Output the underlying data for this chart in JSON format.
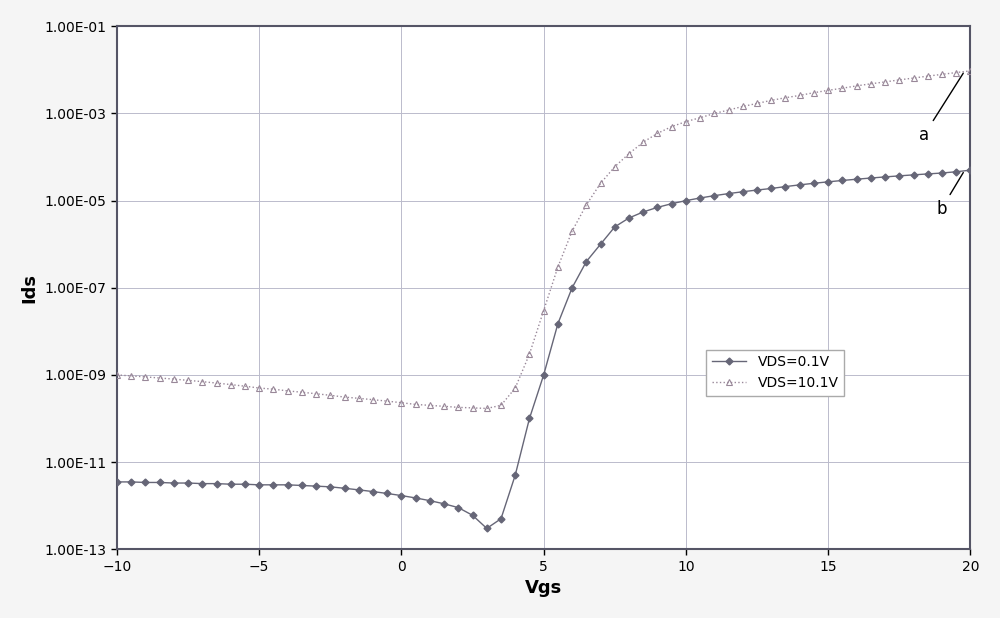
{
  "title": "",
  "xlabel": "Vgs",
  "ylabel": "Ids",
  "xlim": [
    -10,
    20
  ],
  "ylim_log": [
    -13,
    -1
  ],
  "background_color": "#f5f5f5",
  "plot_bg_color": "#ffffff",
  "border_color": "#555566",
  "grid_color": "#bbbbcc",
  "vds01_color": "#666677",
  "vds101_color": "#998899",
  "vds01_label": "VDS=0.1V",
  "vds101_label": "VDS=10.1V",
  "annotation_a": "a",
  "annotation_b": "b",
  "vds01_x": [
    -10.0,
    -9.5,
    -9.0,
    -8.5,
    -8.0,
    -7.5,
    -7.0,
    -6.5,
    -6.0,
    -5.5,
    -5.0,
    -4.5,
    -4.0,
    -3.5,
    -3.0,
    -2.5,
    -2.0,
    -1.5,
    -1.0,
    -0.5,
    0.0,
    0.5,
    1.0,
    1.5,
    2.0,
    2.5,
    3.0,
    3.5,
    4.0,
    4.5,
    5.0,
    5.5,
    6.0,
    6.5,
    7.0,
    7.5,
    8.0,
    8.5,
    9.0,
    9.5,
    10.0,
    10.5,
    11.0,
    11.5,
    12.0,
    12.5,
    13.0,
    13.5,
    14.0,
    14.5,
    15.0,
    15.5,
    16.0,
    16.5,
    17.0,
    17.5,
    18.0,
    18.5,
    19.0,
    19.5,
    20.0
  ],
  "vds01_y": [
    3.5e-12,
    3.5e-12,
    3.4e-12,
    3.4e-12,
    3.3e-12,
    3.3e-12,
    3.2e-12,
    3.2e-12,
    3.1e-12,
    3.1e-12,
    3e-12,
    3e-12,
    3e-12,
    2.9e-12,
    2.8e-12,
    2.7e-12,
    2.5e-12,
    2.3e-12,
    2.1e-12,
    1.9e-12,
    1.7e-12,
    1.5e-12,
    1.3e-12,
    1.1e-12,
    9e-13,
    6e-13,
    3e-13,
    5e-13,
    5e-12,
    1e-10,
    1e-09,
    1.5e-08,
    1e-07,
    4e-07,
    1e-06,
    2.5e-06,
    4e-06,
    5.5e-06,
    7e-06,
    8.5e-06,
    1e-05,
    1.15e-05,
    1.3e-05,
    1.45e-05,
    1.6e-05,
    1.75e-05,
    1.9e-05,
    2.1e-05,
    2.3e-05,
    2.5e-05,
    2.7e-05,
    2.9e-05,
    3.1e-05,
    3.3e-05,
    3.5e-05,
    3.7e-05,
    3.9e-05,
    4.1e-05,
    4.3e-05,
    4.6e-05,
    5e-05
  ],
  "vds101_x": [
    -10.0,
    -9.5,
    -9.0,
    -8.5,
    -8.0,
    -7.5,
    -7.0,
    -6.5,
    -6.0,
    -5.5,
    -5.0,
    -4.5,
    -4.0,
    -3.5,
    -3.0,
    -2.5,
    -2.0,
    -1.5,
    -1.0,
    -0.5,
    0.0,
    0.5,
    1.0,
    1.5,
    2.0,
    2.5,
    3.0,
    3.5,
    4.0,
    4.5,
    5.0,
    5.5,
    6.0,
    6.5,
    7.0,
    7.5,
    8.0,
    8.5,
    9.0,
    9.5,
    10.0,
    10.5,
    11.0,
    11.5,
    12.0,
    12.5,
    13.0,
    13.5,
    14.0,
    14.5,
    15.0,
    15.5,
    16.0,
    16.5,
    17.0,
    17.5,
    18.0,
    18.5,
    19.0,
    19.5,
    20.0
  ],
  "vds101_y": [
    1e-09,
    9.5e-10,
    9e-10,
    8.5e-10,
    8e-10,
    7.5e-10,
    7e-10,
    6.5e-10,
    6e-10,
    5.5e-10,
    5e-10,
    4.7e-10,
    4.3e-10,
    4e-10,
    3.7e-10,
    3.4e-10,
    3.1e-10,
    2.9e-10,
    2.7e-10,
    2.5e-10,
    2.3e-10,
    2.1e-10,
    2e-10,
    1.9e-10,
    1.8e-10,
    1.75e-10,
    1.7e-10,
    2e-10,
    5e-10,
    3e-09,
    3e-08,
    3e-07,
    2e-06,
    8e-06,
    2.5e-05,
    6e-05,
    0.00012,
    0.00022,
    0.00035,
    0.0005,
    0.00065,
    0.0008,
    0.001,
    0.0012,
    0.00145,
    0.0017,
    0.002,
    0.0023,
    0.0026,
    0.003,
    0.0034,
    0.0038,
    0.0043,
    0.0048,
    0.0053,
    0.0059,
    0.0065,
    0.0072,
    0.0079,
    0.0087,
    0.0095
  ]
}
